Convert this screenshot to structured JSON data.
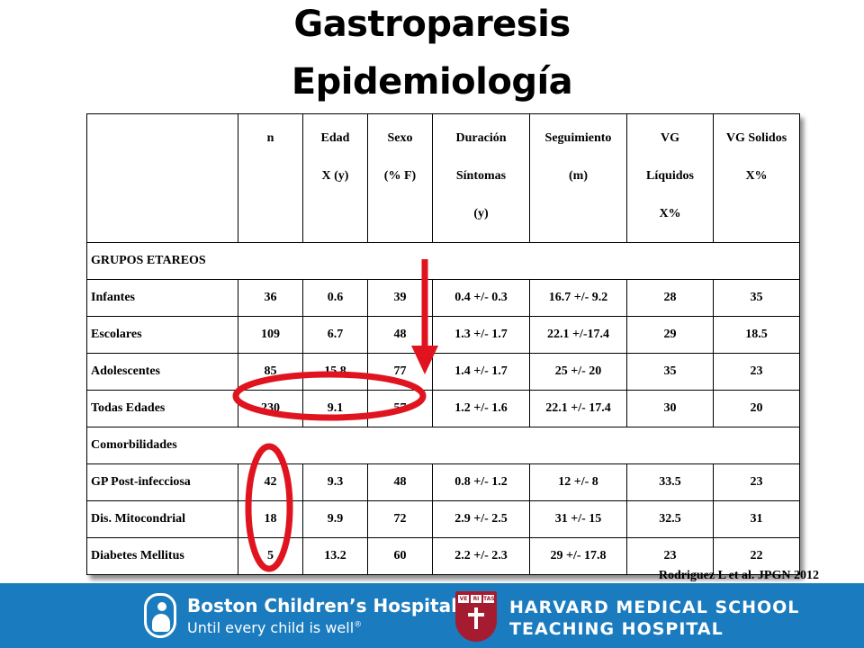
{
  "title": {
    "line1": "Gastroparesis",
    "line2": "Epidemiología"
  },
  "table": {
    "header": {
      "n": [
        "n"
      ],
      "edad": [
        "Edad",
        "X (y)"
      ],
      "sexo": [
        "Sexo",
        "(% F)"
      ],
      "duracion": [
        "Duración",
        "Síntomas",
        "(y)"
      ],
      "seguimiento": [
        "Seguimiento",
        "(m)"
      ],
      "vg_liquidos": [
        "VG",
        "Líquidos",
        "X%"
      ],
      "vg_solidos": [
        "VG Solidos",
        "X%"
      ]
    },
    "sections": [
      {
        "title": "GRUPOS ETAREOS",
        "rows": [
          [
            "Infantes",
            "36",
            "0.6",
            "39",
            "0.4 +/- 0.3",
            "16.7 +/- 9.2",
            "28",
            "35"
          ],
          [
            "Escolares",
            "109",
            "6.7",
            "48",
            "1.3 +/- 1.7",
            "22.1 +/-17.4",
            "29",
            "18.5"
          ],
          [
            "Adolescentes",
            "85",
            "15.8",
            "77",
            "1.4 +/- 1.7",
            "25 +/- 20",
            "35",
            "23"
          ],
          [
            "Todas Edades",
            "230",
            "9.1",
            "57",
            "1.2 +/- 1.6",
            "22.1 +/- 17.4",
            "30",
            "20"
          ]
        ]
      },
      {
        "title": "Comorbilidades",
        "rows": [
          [
            "GP Post-infecciosa",
            "42",
            "9.3",
            "48",
            "0.8 +/- 1.2",
            "12 +/- 8",
            "33.5",
            "23"
          ],
          [
            "Dis. Mitocondrial",
            "18",
            "9.9",
            "72",
            "2.9 +/- 2.5",
            "31 +/- 15",
            "32.5",
            "31"
          ],
          [
            "Diabetes Mellitus",
            "5",
            "13.2",
            "60",
            "2.2 +/- 2.3",
            "29 +/- 17.8",
            "23",
            "22"
          ]
        ]
      }
    ]
  },
  "citation": "Rodriguez L et al. JPGN 2012",
  "footer": {
    "bch_name": "Boston Children’s Hospital",
    "bch_tagline": "Until every child is well",
    "bch_trademark": "®",
    "hms_line1": "HARVARD MEDICAL SCHOOL",
    "hms_line2": "TEACHING HOSPITAL",
    "shield_text": [
      "VE",
      "RI",
      "TAS"
    ]
  },
  "colors": {
    "footer_bg": "#1b7bbf",
    "annotation_red": "#e0141e",
    "shield_red": "#a51c30"
  }
}
